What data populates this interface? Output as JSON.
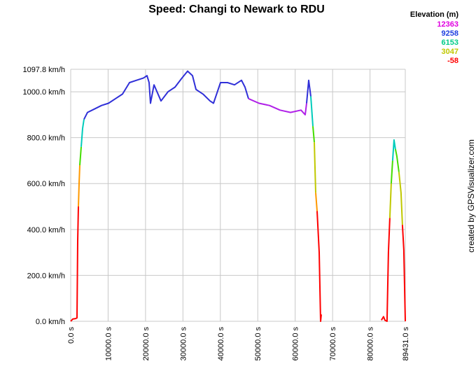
{
  "chart_data": {
    "type": "line",
    "title": "Speed: Changi to Newark to RDU",
    "credit": "created by GPSVisualizer.com",
    "legend_title": "Elevation (m)",
    "color_scale": [
      {
        "value": 12363,
        "color": "#e000e0"
      },
      {
        "value": 9258,
        "color": "#1f3fe0"
      },
      {
        "value": 6153,
        "color": "#00cc88"
      },
      {
        "value": 3047,
        "color": "#c0c800"
      },
      {
        "value": -58,
        "color": "#ff0000"
      }
    ],
    "xlim": [
      0,
      89431
    ],
    "ylim": [
      0,
      1097.8
    ],
    "grid": true,
    "yticks": [
      {
        "value": 0,
        "label": "0.0 km/h"
      },
      {
        "value": 200,
        "label": "200.0 km/h"
      },
      {
        "value": 400,
        "label": "400.0 km/h"
      },
      {
        "value": 600,
        "label": "600.0 km/h"
      },
      {
        "value": 800,
        "label": "800.0 km/h"
      },
      {
        "value": 1000,
        "label": "1000.0 km/h"
      },
      {
        "value": 1097.8,
        "label": "1097.8 km/h"
      }
    ],
    "xticks": [
      {
        "value": 0,
        "label": "0.0 s"
      },
      {
        "value": 10000,
        "label": "10000.0 s"
      },
      {
        "value": 20000,
        "label": "20000.0 s"
      },
      {
        "value": 30000,
        "label": "30000.0 s"
      },
      {
        "value": 40000,
        "label": "40000.0 s"
      },
      {
        "value": 50000,
        "label": "50000.0 s"
      },
      {
        "value": 60000,
        "label": "60000.0 s"
      },
      {
        "value": 70000,
        "label": "70000.0 s"
      },
      {
        "value": 80000,
        "label": "80000.0 s"
      },
      {
        "value": 89431,
        "label": "89431.0 s"
      }
    ],
    "series": [
      {
        "color": "#ff0000",
        "x": [
          0,
          561,
          1310,
          1684,
          1871,
          2058
        ],
        "values": [
          0,
          10,
          12,
          15,
          350,
          500
        ]
      },
      {
        "color": "#ff9900",
        "x": [
          2058,
          2245,
          2432
        ],
        "values": [
          500,
          600,
          680
        ]
      },
      {
        "color": "#44dd00",
        "x": [
          2432,
          2806
        ],
        "values": [
          680,
          760
        ]
      },
      {
        "color": "#00ccbb",
        "x": [
          2806,
          3180,
          3555
        ],
        "values": [
          760,
          840,
          880
        ]
      },
      {
        "color": "#3030d8",
        "x": [
          3555,
          4490,
          6361,
          8232,
          10103,
          11974,
          13845,
          15716,
          17587,
          19458,
          20394,
          20955,
          21330,
          22265,
          24136,
          26007,
          27878,
          29748,
          31245,
          32555,
          33490,
          35361,
          37232,
          38168,
          40039,
          41910,
          43781,
          45652,
          46587,
          47523
        ],
        "values": [
          880,
          910,
          925,
          940,
          950,
          970,
          990,
          1040,
          1050,
          1060,
          1070,
          1040,
          950,
          1030,
          960,
          1000,
          1020,
          1060,
          1090,
          1070,
          1010,
          990,
          960,
          950,
          1040,
          1040,
          1030,
          1050,
          1020,
          970
        ]
      },
      {
        "color": "#b020e8",
        "x": [
          47523,
          50329,
          53136,
          55942,
          58748,
          61555,
          62677,
          63051
        ],
        "values": [
          970,
          950,
          940,
          920,
          910,
          920,
          900,
          950
        ]
      },
      {
        "color": "#3030d8",
        "x": [
          63051,
          63612,
          64174
        ],
        "values": [
          950,
          1050,
          980
        ]
      },
      {
        "color": "#00ccbb",
        "x": [
          64174,
          64735
        ],
        "values": [
          980,
          850
        ]
      },
      {
        "color": "#44dd00",
        "x": [
          64735,
          65109
        ],
        "values": [
          850,
          780
        ]
      },
      {
        "color": "#c0c800",
        "x": [
          65109,
          65484
        ],
        "values": [
          780,
          560
        ]
      },
      {
        "color": "#ff9900",
        "x": [
          65484,
          65858
        ],
        "values": [
          560,
          480
        ]
      },
      {
        "color": "#ff0000",
        "x": [
          65858,
          66419,
          66793,
          66980
        ],
        "values": [
          480,
          300,
          0,
          30
        ]
      },
      {
        "color": "#ff0000",
        "x": [
          83059,
          83620,
          83995,
          84556,
          84930,
          85304
        ],
        "values": [
          5,
          20,
          5,
          0,
          300,
          450
        ]
      },
      {
        "color": "#c0c800",
        "x": [
          85304,
          85678
        ],
        "values": [
          450,
          600
        ]
      },
      {
        "color": "#44dd00",
        "x": [
          85678,
          86052
        ],
        "values": [
          600,
          700
        ]
      },
      {
        "color": "#00ccbb",
        "x": [
          86052,
          86426,
          86800
        ],
        "values": [
          700,
          790,
          750
        ]
      },
      {
        "color": "#44dd00",
        "x": [
          86800,
          87174,
          87736
        ],
        "values": [
          750,
          720,
          650
        ]
      },
      {
        "color": "#c0c800",
        "x": [
          87736,
          88297,
          88671
        ],
        "values": [
          650,
          560,
          420
        ]
      },
      {
        "color": "#ff0000",
        "x": [
          88671,
          89045,
          89431
        ],
        "values": [
          420,
          310,
          0
        ]
      }
    ]
  }
}
